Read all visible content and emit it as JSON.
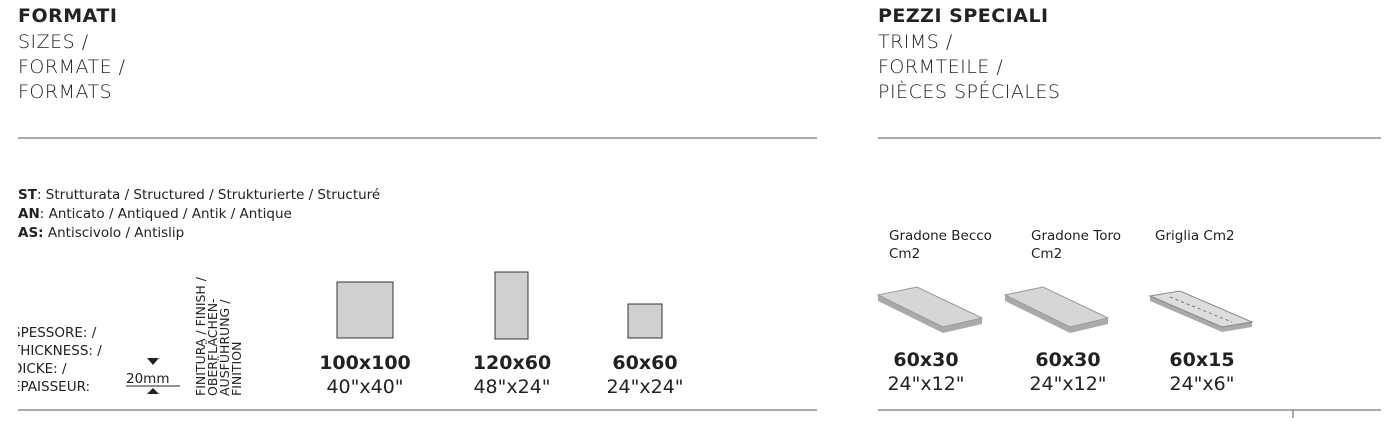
{
  "left": {
    "title": "FORMATI",
    "subtitles": [
      "SIZES /",
      "FORMATE /",
      "FORMATS"
    ]
  },
  "right": {
    "title": "PEZZI SPECIALI",
    "subtitles": [
      "TRIMS /",
      "FORMTEILE /",
      "PIÈCES SPÉCIALES"
    ]
  },
  "legend": [
    {
      "code": "ST",
      "text": ": Strutturata / Structured / Strukturierte / Structuré"
    },
    {
      "code": "AN",
      "text": ": Anticato / Antiqued / Antik / Antique"
    },
    {
      "code": "AS:",
      "text": " Antiscivolo / Antislip"
    }
  ],
  "thickness": {
    "labels": [
      "SPESSORE: /",
      "THICKNESS: /",
      "DICKE: /",
      "ÉPAISSEUR:"
    ],
    "value": "20mm"
  },
  "finish_label": [
    "FINITURA / FINISH /",
    "OBERFLÄCHEN-",
    "AUSFÜHRUNG /",
    "FINITION"
  ],
  "sizes": [
    {
      "cm": "100x100",
      "inch": "40\"x40\""
    },
    {
      "cm": "120x60",
      "inch": "48\"x24\""
    },
    {
      "cm": "60x60",
      "inch": "24\"x24\""
    }
  ],
  "trims": [
    {
      "name": [
        "Gradone Becco",
        "Cm2"
      ],
      "cm": "60x30",
      "inch": "24\"x12\""
    },
    {
      "name": [
        "Gradone Toro",
        "Cm2"
      ],
      "cm": "60x30",
      "inch": "24\"x12\""
    },
    {
      "name": [
        "Griglia Cm2"
      ],
      "cm": "60x15",
      "inch": "24\"x6\""
    }
  ]
}
